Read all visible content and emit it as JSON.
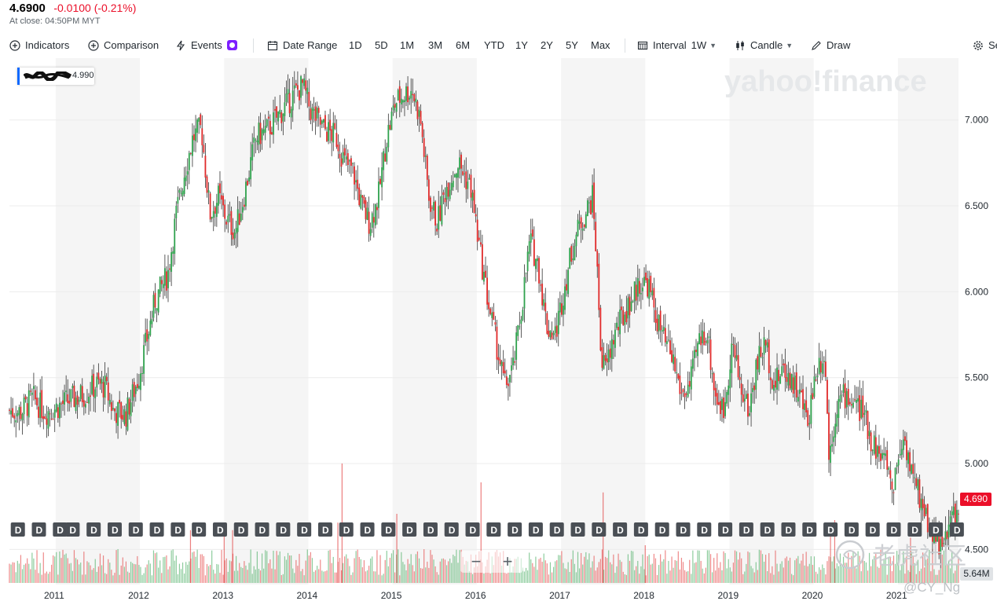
{
  "quote": {
    "price": "4.6900",
    "change": "-0.0100 (-0.21%)",
    "close_note": "At close: 04:50PM MYT"
  },
  "toolbar": {
    "indicators": "Indicators",
    "comparison": "Comparison",
    "events": "Events",
    "date_range": "Date Range",
    "ranges": [
      "1D",
      "5D",
      "1M",
      "3M",
      "6M",
      "YTD",
      "1Y",
      "2Y",
      "5Y",
      "Max"
    ],
    "interval_label": "Interval",
    "interval_value": "1W",
    "chart_type": "Candle",
    "draw": "Draw",
    "settings": "Se"
  },
  "legend": {
    "value": "4.990"
  },
  "watermarks": {
    "brand": "yahoo!finance",
    "tiger": "老虎社区",
    "user": "@CY_Ng"
  },
  "markers": {
    "dividend_label": "D",
    "zoom_out": "−",
    "zoom_in": "+"
  },
  "colors": {
    "up": "#2fa24d",
    "down": "#e02a2a",
    "band": "#f5f5f5",
    "last_price": "#eb0f29",
    "accent": "#0f69ff"
  },
  "chart_data": {
    "type": "candlestick",
    "interval": "1W",
    "x_tick_labels": [
      "2011",
      "2012",
      "2013",
      "2014",
      "2015",
      "2016",
      "2017",
      "2018",
      "2019",
      "2020",
      "2021"
    ],
    "x_range": [
      2010.45,
      2021.72
    ],
    "y_tick_labels": [
      "7.000",
      "6.500",
      "6.000",
      "5.500",
      "5.000",
      "4.500"
    ],
    "y_range": [
      4.36,
      7.36
    ],
    "last_price": "4.690",
    "volume_label": "5.64M",
    "price_path": [
      [
        2010.45,
        5.31
      ],
      [
        2010.6,
        5.3
      ],
      [
        2010.75,
        5.38
      ],
      [
        2010.9,
        5.3
      ],
      [
        2011.0,
        5.32
      ],
      [
        2011.15,
        5.36
      ],
      [
        2011.35,
        5.4
      ],
      [
        2011.5,
        5.46
      ],
      [
        2011.6,
        5.45
      ],
      [
        2011.7,
        5.31
      ],
      [
        2011.85,
        5.28
      ],
      [
        2012.0,
        5.5
      ],
      [
        2012.1,
        5.72
      ],
      [
        2012.2,
        5.95
      ],
      [
        2012.35,
        6.1
      ],
      [
        2012.45,
        6.45
      ],
      [
        2012.55,
        6.7
      ],
      [
        2012.65,
        6.9
      ],
      [
        2012.75,
        6.95
      ],
      [
        2012.85,
        6.45
      ],
      [
        2012.95,
        6.55
      ],
      [
        2013.05,
        6.42
      ],
      [
        2013.15,
        6.35
      ],
      [
        2013.25,
        6.55
      ],
      [
        2013.4,
        6.9
      ],
      [
        2013.55,
        6.95
      ],
      [
        2013.7,
        7.05
      ],
      [
        2013.85,
        7.15
      ],
      [
        2013.95,
        7.2
      ],
      [
        2014.05,
        7.05
      ],
      [
        2014.2,
        6.95
      ],
      [
        2014.35,
        6.9
      ],
      [
        2014.45,
        6.75
      ],
      [
        2014.55,
        6.7
      ],
      [
        2014.65,
        6.5
      ],
      [
        2014.75,
        6.4
      ],
      [
        2014.85,
        6.55
      ],
      [
        2014.95,
        6.9
      ],
      [
        2015.05,
        7.1
      ],
      [
        2015.15,
        7.15
      ],
      [
        2015.25,
        7.18
      ],
      [
        2015.35,
        7.0
      ],
      [
        2015.45,
        6.55
      ],
      [
        2015.55,
        6.4
      ],
      [
        2015.65,
        6.6
      ],
      [
        2015.8,
        6.75
      ],
      [
        2015.95,
        6.6
      ],
      [
        2016.05,
        6.25
      ],
      [
        2016.15,
        5.95
      ],
      [
        2016.25,
        5.7
      ],
      [
        2016.35,
        5.45
      ],
      [
        2016.45,
        5.55
      ],
      [
        2016.55,
        5.9
      ],
      [
        2016.65,
        6.3
      ],
      [
        2016.75,
        6.15
      ],
      [
        2016.85,
        5.8
      ],
      [
        2016.95,
        5.75
      ],
      [
        2017.05,
        6.0
      ],
      [
        2017.15,
        6.25
      ],
      [
        2017.25,
        6.4
      ],
      [
        2017.35,
        6.5
      ],
      [
        2017.4,
        6.55
      ],
      [
        2017.45,
        6.1
      ],
      [
        2017.5,
        5.6
      ],
      [
        2017.55,
        5.55
      ],
      [
        2017.65,
        5.75
      ],
      [
        2017.8,
        5.9
      ],
      [
        2017.95,
        6.05
      ],
      [
        2018.05,
        6.05
      ],
      [
        2018.15,
        5.85
      ],
      [
        2018.25,
        5.7
      ],
      [
        2018.35,
        5.6
      ],
      [
        2018.45,
        5.4
      ],
      [
        2018.55,
        5.45
      ],
      [
        2018.65,
        5.7
      ],
      [
        2018.75,
        5.78
      ],
      [
        2018.85,
        5.4
      ],
      [
        2018.95,
        5.3
      ],
      [
        2019.05,
        5.7
      ],
      [
        2019.15,
        5.45
      ],
      [
        2019.25,
        5.3
      ],
      [
        2019.35,
        5.6
      ],
      [
        2019.45,
        5.7
      ],
      [
        2019.55,
        5.45
      ],
      [
        2019.65,
        5.55
      ],
      [
        2019.75,
        5.5
      ],
      [
        2019.85,
        5.4
      ],
      [
        2019.95,
        5.25
      ],
      [
        2020.05,
        5.55
      ],
      [
        2020.15,
        5.65
      ],
      [
        2020.2,
        5.05
      ],
      [
        2020.3,
        5.35
      ],
      [
        2020.4,
        5.4
      ],
      [
        2020.5,
        5.35
      ],
      [
        2020.6,
        5.3
      ],
      [
        2020.7,
        5.15
      ],
      [
        2020.8,
        5.05
      ],
      [
        2020.9,
        5.0
      ],
      [
        2020.95,
        4.85
      ],
      [
        2021.05,
        5.1
      ],
      [
        2021.1,
        5.15
      ],
      [
        2021.2,
        4.9
      ],
      [
        2021.3,
        4.78
      ],
      [
        2021.4,
        4.62
      ],
      [
        2021.5,
        4.55
      ],
      [
        2021.55,
        4.48
      ],
      [
        2021.6,
        4.58
      ],
      [
        2021.65,
        4.7
      ],
      [
        2021.72,
        4.69
      ]
    ],
    "volume_spikes": [
      [
        2012.6,
        0.42
      ],
      [
        2013.0,
        0.4
      ],
      [
        2013.1,
        0.42
      ],
      [
        2014.35,
        0.48
      ],
      [
        2014.4,
        0.95
      ],
      [
        2015.05,
        0.55
      ],
      [
        2016.05,
        0.8
      ],
      [
        2017.5,
        0.72
      ],
      [
        2018.0,
        0.3
      ],
      [
        2020.2,
        0.46
      ],
      [
        2020.25,
        0.5
      ],
      [
        2021.15,
        0.36
      ]
    ],
    "dividend_markers_x": [
      2010.55,
      2010.8,
      2011.05,
      2011.2,
      2011.45,
      2011.7,
      2011.95,
      2012.2,
      2012.45,
      2012.7,
      2012.95,
      2013.2,
      2013.45,
      2013.7,
      2013.95,
      2014.2,
      2014.45,
      2014.7,
      2014.95,
      2015.2,
      2015.45,
      2015.7,
      2015.95,
      2016.2,
      2016.45,
      2016.7,
      2016.95,
      2017.2,
      2017.45,
      2017.7,
      2017.95,
      2018.2,
      2018.45,
      2018.7,
      2018.95,
      2019.2,
      2019.45,
      2019.7,
      2019.95,
      2020.2,
      2020.45,
      2020.7,
      2020.95,
      2021.2,
      2021.45,
      2021.7
    ]
  }
}
